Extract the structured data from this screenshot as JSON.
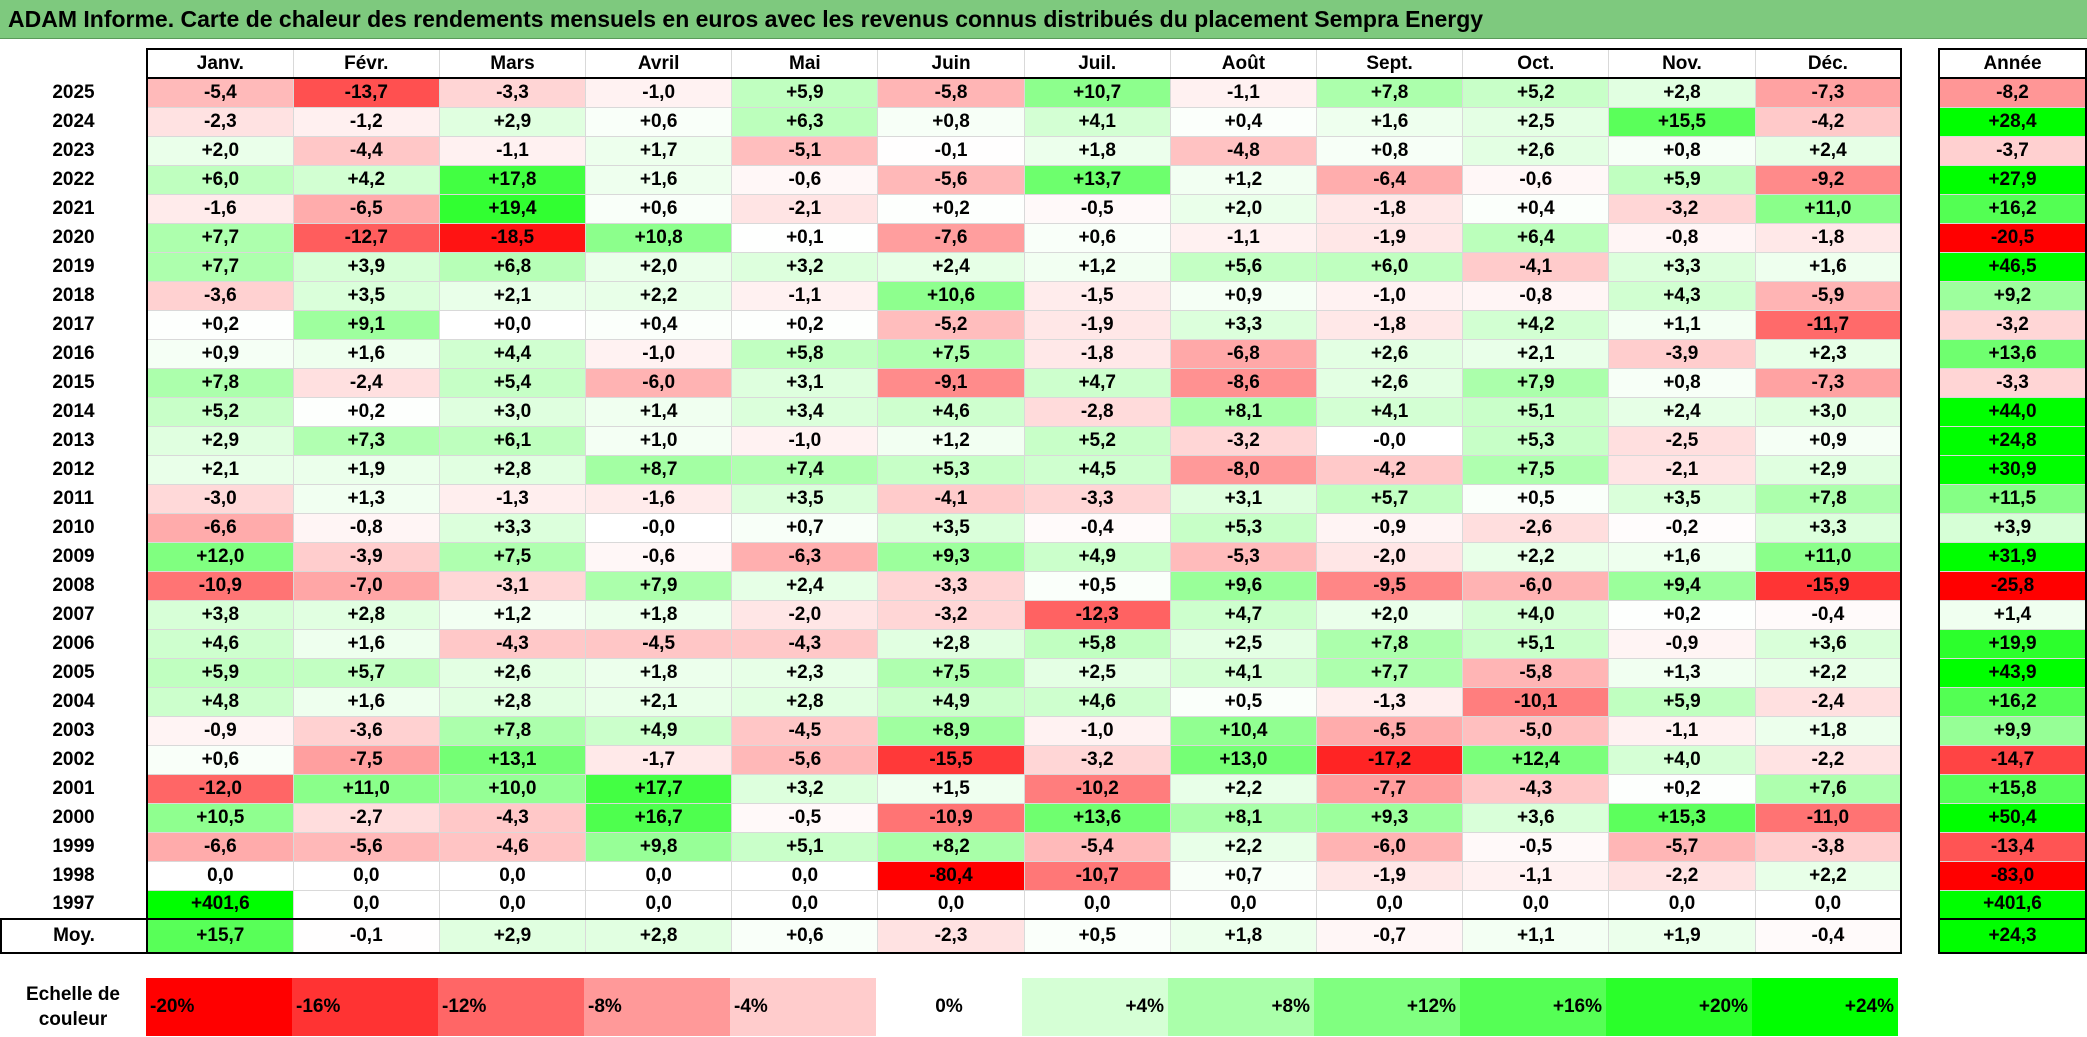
{
  "title": "ADAM Informe. Carte de chaleur des rendements mensuels en euros avec les revenus connus distribués du placement Sempra Energy",
  "chart_data": {
    "type": "heatmap",
    "title": "ADAM Informe. Carte de chaleur des rendements mensuels en euros avec les revenus connus distribués du placement Sempra Energy",
    "months": [
      "Janv.",
      "Févr.",
      "Mars",
      "Avril",
      "Mai",
      "Juin",
      "Juil.",
      "Août",
      "Sept.",
      "Oct.",
      "Nov.",
      "Déc."
    ],
    "year_header": "Année",
    "avg_label": "Moy.",
    "rows": [
      {
        "year": "2025",
        "values": [
          "-5,4",
          "-13,7",
          "-3,3",
          "-1,0",
          "+5,9",
          "-5,8",
          "+10,7",
          "-1,1",
          "+7,8",
          "+5,2",
          "+2,8",
          "-7,3"
        ],
        "annual": "-8,2"
      },
      {
        "year": "2024",
        "values": [
          "-2,3",
          "-1,2",
          "+2,9",
          "+0,6",
          "+6,3",
          "+0,8",
          "+4,1",
          "+0,4",
          "+1,6",
          "+2,5",
          "+15,5",
          "-4,2"
        ],
        "annual": "+28,4"
      },
      {
        "year": "2023",
        "values": [
          "+2,0",
          "-4,4",
          "-1,1",
          "+1,7",
          "-5,1",
          "-0,1",
          "+1,8",
          "-4,8",
          "+0,8",
          "+2,6",
          "+0,8",
          "+2,4"
        ],
        "annual": "-3,7"
      },
      {
        "year": "2022",
        "values": [
          "+6,0",
          "+4,2",
          "+17,8",
          "+1,6",
          "-0,6",
          "-5,6",
          "+13,7",
          "+1,2",
          "-6,4",
          "-0,6",
          "+5,9",
          "-9,2"
        ],
        "annual": "+27,9"
      },
      {
        "year": "2021",
        "values": [
          "-1,6",
          "-6,5",
          "+19,4",
          "+0,6",
          "-2,1",
          "+0,2",
          "-0,5",
          "+2,0",
          "-1,8",
          "+0,4",
          "-3,2",
          "+11,0"
        ],
        "annual": "+16,2"
      },
      {
        "year": "2020",
        "values": [
          "+7,7",
          "-12,7",
          "-18,5",
          "+10,8",
          "+0,1",
          "-7,6",
          "+0,6",
          "-1,1",
          "-1,9",
          "+6,4",
          "-0,8",
          "-1,8"
        ],
        "annual": "-20,5"
      },
      {
        "year": "2019",
        "values": [
          "+7,7",
          "+3,9",
          "+6,8",
          "+2,0",
          "+3,2",
          "+2,4",
          "+1,2",
          "+5,6",
          "+6,0",
          "-4,1",
          "+3,3",
          "+1,6"
        ],
        "annual": "+46,5"
      },
      {
        "year": "2018",
        "values": [
          "-3,6",
          "+3,5",
          "+2,1",
          "+2,2",
          "-1,1",
          "+10,6",
          "-1,5",
          "+0,9",
          "-1,0",
          "-0,8",
          "+4,3",
          "-5,9"
        ],
        "annual": "+9,2"
      },
      {
        "year": "2017",
        "values": [
          "+0,2",
          "+9,1",
          "+0,0",
          "+0,4",
          "+0,2",
          "-5,2",
          "-1,9",
          "+3,3",
          "-1,8",
          "+4,2",
          "+1,1",
          "-11,7"
        ],
        "annual": "-3,2"
      },
      {
        "year": "2016",
        "values": [
          "+0,9",
          "+1,6",
          "+4,4",
          "-1,0",
          "+5,8",
          "+7,5",
          "-1,8",
          "-6,8",
          "+2,6",
          "+2,1",
          "-3,9",
          "+2,3"
        ],
        "annual": "+13,6"
      },
      {
        "year": "2015",
        "values": [
          "+7,8",
          "-2,4",
          "+5,4",
          "-6,0",
          "+3,1",
          "-9,1",
          "+4,7",
          "-8,6",
          "+2,6",
          "+7,9",
          "+0,8",
          "-7,3"
        ],
        "annual": "-3,3"
      },
      {
        "year": "2014",
        "values": [
          "+5,2",
          "+0,2",
          "+3,0",
          "+1,4",
          "+3,4",
          "+4,6",
          "-2,8",
          "+8,1",
          "+4,1",
          "+5,1",
          "+2,4",
          "+3,0"
        ],
        "annual": "+44,0"
      },
      {
        "year": "2013",
        "values": [
          "+2,9",
          "+7,3",
          "+6,1",
          "+1,0",
          "-1,0",
          "+1,2",
          "+5,2",
          "-3,2",
          "-0,0",
          "+5,3",
          "-2,5",
          "+0,9"
        ],
        "annual": "+24,8"
      },
      {
        "year": "2012",
        "values": [
          "+2,1",
          "+1,9",
          "+2,8",
          "+8,7",
          "+7,4",
          "+5,3",
          "+4,5",
          "-8,0",
          "-4,2",
          "+7,5",
          "-2,1",
          "+2,9"
        ],
        "annual": "+30,9"
      },
      {
        "year": "2011",
        "values": [
          "-3,0",
          "+1,3",
          "-1,3",
          "-1,6",
          "+3,5",
          "-4,1",
          "-3,3",
          "+3,1",
          "+5,7",
          "+0,5",
          "+3,5",
          "+7,8"
        ],
        "annual": "+11,5"
      },
      {
        "year": "2010",
        "values": [
          "-6,6",
          "-0,8",
          "+3,3",
          "-0,0",
          "+0,7",
          "+3,5",
          "-0,4",
          "+5,3",
          "-0,9",
          "-2,6",
          "-0,2",
          "+3,3"
        ],
        "annual": "+3,9"
      },
      {
        "year": "2009",
        "values": [
          "+12,0",
          "-3,9",
          "+7,5",
          "-0,6",
          "-6,3",
          "+9,3",
          "+4,9",
          "-5,3",
          "-2,0",
          "+2,2",
          "+1,6",
          "+11,0"
        ],
        "annual": "+31,9"
      },
      {
        "year": "2008",
        "values": [
          "-10,9",
          "-7,0",
          "-3,1",
          "+7,9",
          "+2,4",
          "-3,3",
          "+0,5",
          "+9,6",
          "-9,5",
          "-6,0",
          "+9,4",
          "-15,9"
        ],
        "annual": "-25,8"
      },
      {
        "year": "2007",
        "values": [
          "+3,8",
          "+2,8",
          "+1,2",
          "+1,8",
          "-2,0",
          "-3,2",
          "-12,3",
          "+4,7",
          "+2,0",
          "+4,0",
          "+0,2",
          "-0,4"
        ],
        "annual": "+1,4"
      },
      {
        "year": "2006",
        "values": [
          "+4,6",
          "+1,6",
          "-4,3",
          "-4,5",
          "-4,3",
          "+2,8",
          "+5,8",
          "+2,5",
          "+7,8",
          "+5,1",
          "-0,9",
          "+3,6"
        ],
        "annual": "+19,9"
      },
      {
        "year": "2005",
        "values": [
          "+5,9",
          "+5,7",
          "+2,6",
          "+1,8",
          "+2,3",
          "+7,5",
          "+2,5",
          "+4,1",
          "+7,7",
          "-5,8",
          "+1,3",
          "+2,2"
        ],
        "annual": "+43,9"
      },
      {
        "year": "2004",
        "values": [
          "+4,8",
          "+1,6",
          "+2,8",
          "+2,1",
          "+2,8",
          "+4,9",
          "+4,6",
          "+0,5",
          "-1,3",
          "-10,1",
          "+5,9",
          "-2,4"
        ],
        "annual": "+16,2"
      },
      {
        "year": "2003",
        "values": [
          "-0,9",
          "-3,6",
          "+7,8",
          "+4,9",
          "-4,5",
          "+8,9",
          "-1,0",
          "+10,4",
          "-6,5",
          "-5,0",
          "-1,1",
          "+1,8"
        ],
        "annual": "+9,9"
      },
      {
        "year": "2002",
        "values": [
          "+0,6",
          "-7,5",
          "+13,1",
          "-1,7",
          "-5,6",
          "-15,5",
          "-3,2",
          "+13,0",
          "-17,2",
          "+12,4",
          "+4,0",
          "-2,2"
        ],
        "annual": "-14,7"
      },
      {
        "year": "2001",
        "values": [
          "-12,0",
          "+11,0",
          "+10,0",
          "+17,7",
          "+3,2",
          "+1,5",
          "-10,2",
          "+2,2",
          "-7,7",
          "-4,3",
          "+0,2",
          "+7,6"
        ],
        "annual": "+15,8"
      },
      {
        "year": "2000",
        "values": [
          "+10,5",
          "-2,7",
          "-4,3",
          "+16,7",
          "-0,5",
          "-10,9",
          "+13,6",
          "+8,1",
          "+9,3",
          "+3,6",
          "+15,3",
          "-11,0"
        ],
        "annual": "+50,4"
      },
      {
        "year": "1999",
        "values": [
          "-6,6",
          "-5,6",
          "-4,6",
          "+9,8",
          "+5,1",
          "+8,2",
          "-5,4",
          "+2,2",
          "-6,0",
          "-0,5",
          "-5,7",
          "-3,8"
        ],
        "annual": "-13,4"
      },
      {
        "year": "1998",
        "values": [
          "0,0",
          "0,0",
          "0,0",
          "0,0",
          "0,0",
          "-80,4",
          "-10,7",
          "+0,7",
          "-1,9",
          "-1,1",
          "-2,2",
          "+2,2"
        ],
        "annual": "-83,0"
      },
      {
        "year": "1997",
        "values": [
          "+401,6",
          "0,0",
          "0,0",
          "0,0",
          "0,0",
          "0,0",
          "0,0",
          "0,0",
          "0,0",
          "0,0",
          "0,0",
          "0,0"
        ],
        "annual": "+401,6"
      }
    ],
    "average": {
      "values": [
        "+15,7",
        "-0,1",
        "+2,9",
        "+2,8",
        "+0,6",
        "-2,3",
        "+0,5",
        "+1,8",
        "-0,7",
        "+1,1",
        "+1,9",
        "-0,4"
      ],
      "annual": "+24,3"
    },
    "color_scale": {
      "label": "Echelle de couleur",
      "stops": [
        "-20%",
        "-16%",
        "-12%",
        "-8%",
        "-4%",
        "0%",
        "+4%",
        "+8%",
        "+12%",
        "+16%",
        "+20%",
        "+24%"
      ],
      "negative_color": "#ff0000",
      "neutral_color": "#ffffff",
      "positive_color": "#00ff00"
    }
  }
}
